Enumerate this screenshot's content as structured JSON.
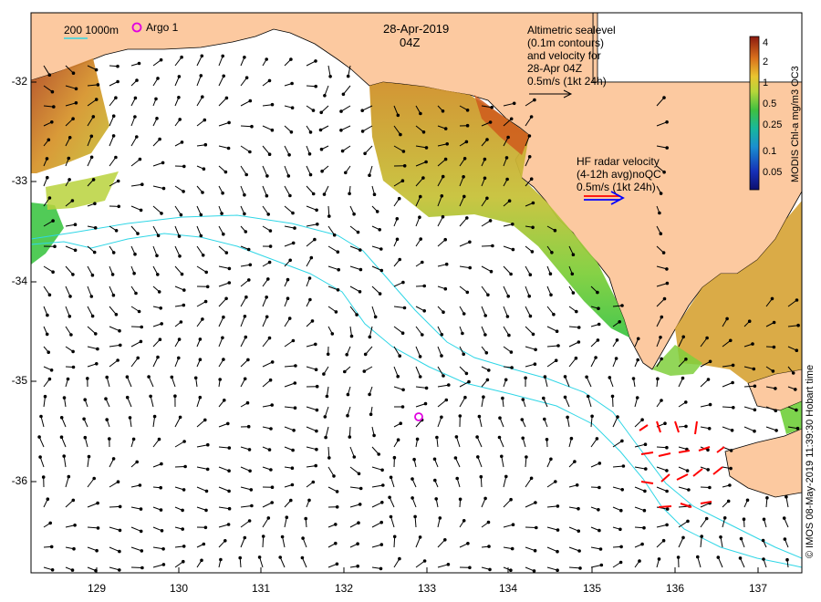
{
  "title": {
    "date": "28-Apr-2019",
    "time": "04Z"
  },
  "bathymetry_legend": {
    "label": "200  1000m",
    "line_color": "#3fd0c8"
  },
  "argo": {
    "label": "Argo 1",
    "marker_color": "#e000e0"
  },
  "altimetry_legend": {
    "lines": [
      "Altimetric sealevel",
      "(0.1m contours)",
      "and velocity for",
      "28-Apr 04Z",
      "0.5m/s (1kt 24h)"
    ],
    "arrow_color": "#000000"
  },
  "hf_radar_legend": {
    "lines": [
      "HF radar velocity",
      "(4-12h avg)noQC",
      "0.5m/s (1kt 24h)"
    ],
    "arrow_colors": [
      "#ff0000",
      "#0000ff"
    ]
  },
  "colorbar": {
    "title": "MODIS Chl-a mg/m3 OC3",
    "ticks": [
      "4",
      "2",
      "1",
      "0.5",
      "0.25",
      "0.1",
      "0.05"
    ]
  },
  "axes": {
    "x_ticks": [
      "129",
      "130",
      "131",
      "132",
      "133",
      "134",
      "135",
      "136",
      "137"
    ],
    "y_ticks": [
      "-32",
      "-33",
      "-34",
      "-35",
      "-36"
    ]
  },
  "credit": "© IMOS 08-May-2019 11:39:30 Hobart time",
  "colors": {
    "land": "#fcc9a0",
    "frame": "#000000",
    "bathy_line": "#2fd6e6"
  }
}
